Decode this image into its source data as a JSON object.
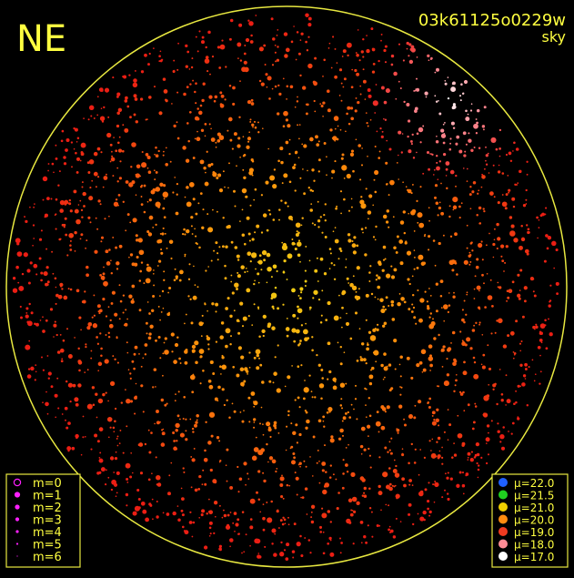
{
  "header": {
    "corner": "NE",
    "frame_id": "03k61125o0229w",
    "filter": "sky"
  },
  "magnitude_legend": [
    "m=0",
    "m=1",
    "m=2",
    "m=3",
    "m=4",
    "m=5",
    "m=6"
  ],
  "brightness_legend": [
    "μ=22.0",
    "μ=21.5",
    "μ=21.0",
    "μ=20.0",
    "μ=19.0",
    "μ=18.0",
    "μ=17.0"
  ]
}
